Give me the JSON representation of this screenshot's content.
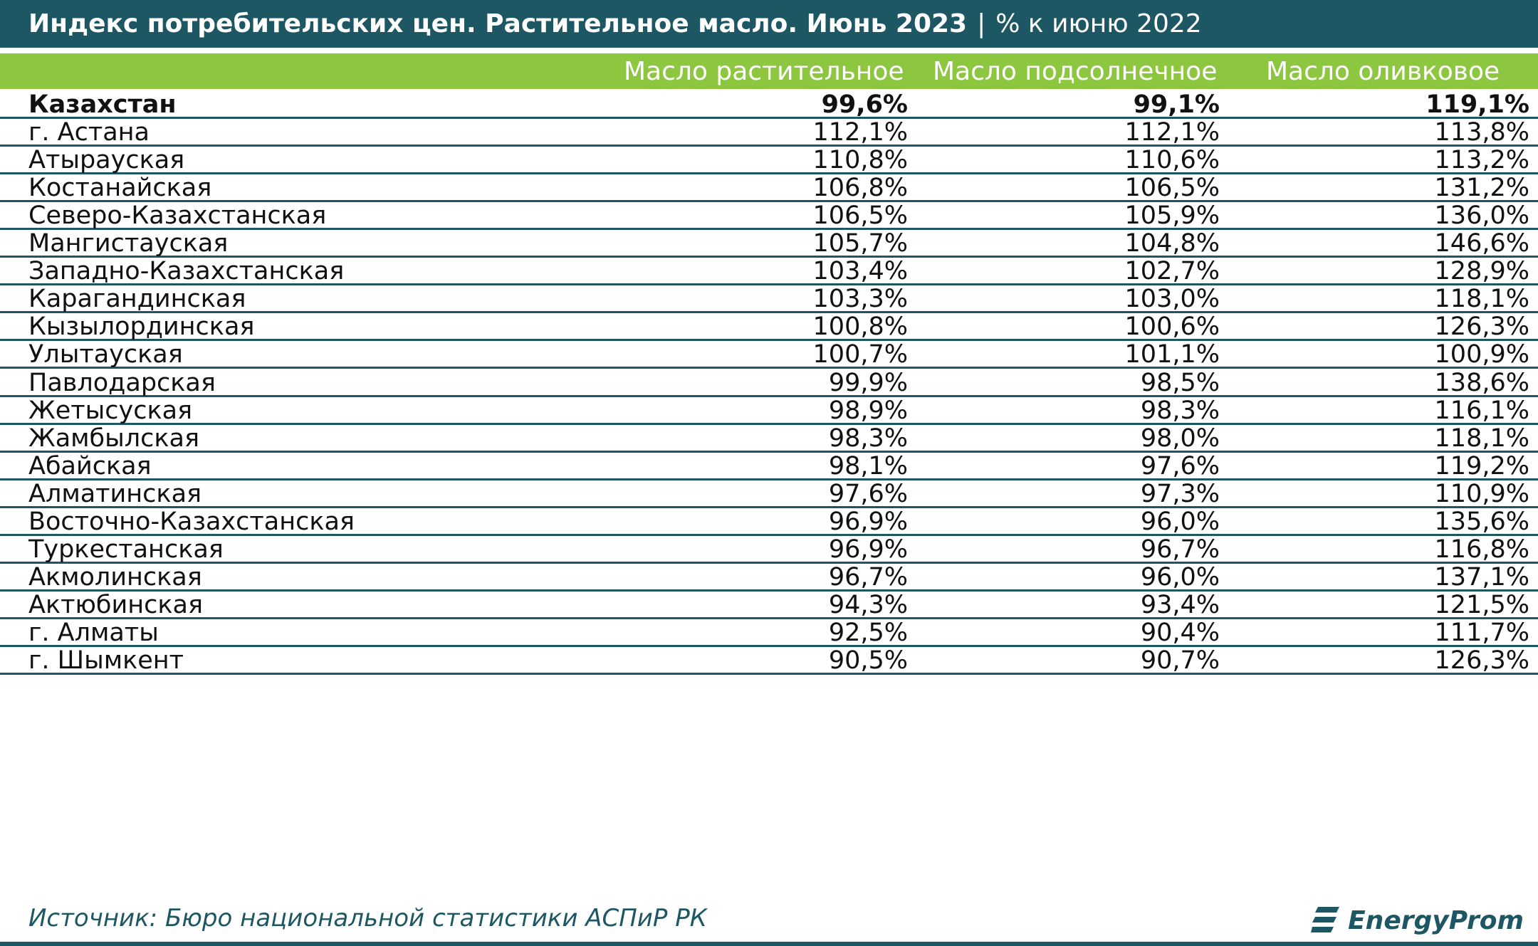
{
  "title": {
    "main": "Индекс потребительских цен. Растительное масло. Июнь 2023",
    "separator": "|",
    "sub": "% к июню 2022"
  },
  "columns": [
    "Масло растительное",
    "Масло подсолнечное",
    "Масло оливковое"
  ],
  "chart_data": {
    "type": "table",
    "title": "Индекс потребительских цен. Растительное масло. Июнь 2023 | % к июню 2022",
    "columns": [
      "Масло растительное",
      "Масло подсолнечное",
      "Масло оливковое"
    ],
    "rows": [
      {
        "region": "Казахстан",
        "values": [
          "99,6%",
          "99,1%",
          "119,1%"
        ],
        "bold": true
      },
      {
        "region": "г. Астана",
        "values": [
          "112,1%",
          "112,1%",
          "113,8%"
        ]
      },
      {
        "region": "Атырауская",
        "values": [
          "110,8%",
          "110,6%",
          "113,2%"
        ]
      },
      {
        "region": "Костанайская",
        "values": [
          "106,8%",
          "106,5%",
          "131,2%"
        ]
      },
      {
        "region": "Северо-Казахстанская",
        "values": [
          "106,5%",
          "105,9%",
          "136,0%"
        ]
      },
      {
        "region": "Мангистауская",
        "values": [
          "105,7%",
          "104,8%",
          "146,6%"
        ]
      },
      {
        "region": "Западно-Казахстанская",
        "values": [
          "103,4%",
          "102,7%",
          "128,9%"
        ]
      },
      {
        "region": "Карагандинская",
        "values": [
          "103,3%",
          "103,0%",
          "118,1%"
        ]
      },
      {
        "region": "Кызылординская",
        "values": [
          "100,8%",
          "100,6%",
          "126,3%"
        ]
      },
      {
        "region": "Улытауская",
        "values": [
          "100,7%",
          "101,1%",
          "100,9%"
        ]
      },
      {
        "region": "Павлодарская",
        "values": [
          "99,9%",
          "98,5%",
          "138,6%"
        ]
      },
      {
        "region": "Жетысуская",
        "values": [
          "98,9%",
          "98,3%",
          "116,1%"
        ]
      },
      {
        "region": "Жамбылская",
        "values": [
          "98,3%",
          "98,0%",
          "118,1%"
        ]
      },
      {
        "region": "Абайская",
        "values": [
          "98,1%",
          "97,6%",
          "119,2%"
        ]
      },
      {
        "region": "Алматинская",
        "values": [
          "97,6%",
          "97,3%",
          "110,9%"
        ]
      },
      {
        "region": "Восточно-Казахстанская",
        "values": [
          "96,9%",
          "96,0%",
          "135,6%"
        ]
      },
      {
        "region": "Туркестанская",
        "values": [
          "96,9%",
          "96,7%",
          "116,8%"
        ]
      },
      {
        "region": "Акмолинская",
        "values": [
          "96,7%",
          "96,0%",
          "137,1%"
        ]
      },
      {
        "region": "Актюбинская",
        "values": [
          "94,3%",
          "93,4%",
          "121,5%"
        ]
      },
      {
        "region": "г. Алматы",
        "values": [
          "92,5%",
          "90,4%",
          "111,7%"
        ]
      },
      {
        "region": "г. Шымкент",
        "values": [
          "90,5%",
          "90,7%",
          "126,3%"
        ]
      }
    ]
  },
  "footer": {
    "source": "Источник: Бюро национальной статистики АСПиР РК",
    "brand": "EnergyProm",
    "logo_icon": "energyprom-logo-icon"
  },
  "colors": {
    "title_bg": "#1e5764",
    "header_bg": "#8dc63f",
    "rule": "#1e5764",
    "source_text": "#1e5764"
  }
}
